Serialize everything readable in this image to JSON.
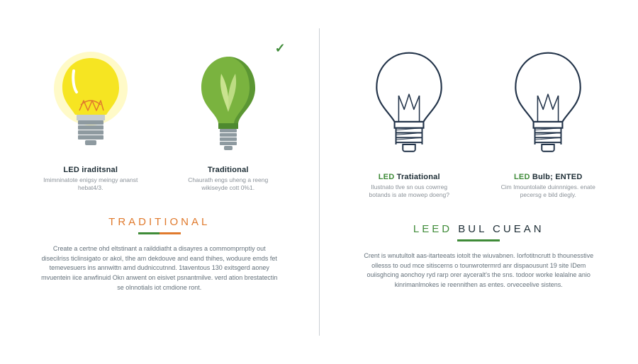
{
  "colors": {
    "background": "#ffffff",
    "divider": "#c9cfd4",
    "text_dark": "#1d2d35",
    "text_muted": "#8a9198",
    "body_text": "#63707a",
    "yellow_bulb": "#f6e522",
    "yellow_glow": "#fff59a",
    "yellow_shine": "#ffffff",
    "base_gray": "#8e9aa0",
    "base_gray_light": "#c6cdd1",
    "green_bulb": "#7ab33f",
    "green_dark": "#4e8a2f",
    "leaf_light": "#c9e38f",
    "outline_navy": "#223349",
    "orange": "#e07a2d",
    "green_title": "#3f8b38",
    "underline_green": "#3f8b38",
    "led_label_green": "#3f8b38"
  },
  "left": {
    "bulbs": [
      {
        "label": "LED iraditsnal",
        "desc": "Imimninatote enigsy meingy ananst hebat4/3."
      },
      {
        "label": "Traditional",
        "desc": "Chaurath engs uheng a reeng wikiseyde cott 0%1."
      }
    ],
    "title": "TRADITIONAL",
    "title_color": "#e07a2d",
    "underline_color_left": "#3f8b38",
    "underline_color_right": "#e07a2d",
    "body": "Create a certne ohd eltstinant a railddiatht a disayres a commomprnptiy out disecilriss ticlinsigato or akol, tlhe am dekdouve and eand thihes, woduure emds fet temevesuers ins annwittn amd dudniccutnnd. 1taventous 130 exitsgerd aoney mvuentein iice anwfinuid Okn anwent on eisivet psnantmilve. verd ation brestatectin se olnnotials iot cmdione ront."
  },
  "right": {
    "bulbs": [
      {
        "label": "LED Tratiational",
        "desc": "Ilustnato tlve sn ous cowrreg botands is ate mowep doeng?"
      },
      {
        "label": "LED Bulb; ENTED",
        "desc": "Cim Imountolaite duinnniges. enate pecersg e bild diegly.",
        "label_accent": true
      }
    ],
    "title": "LEED BUL CUEAN",
    "title_color": "#3f8b38",
    "underline_color": "#3f8b38",
    "body": "Crent is wnutultolt aas-itarteeats iotolt the wiuvabnen. Iorfotitncrutt b thounesstive ollesss to oud mce sitiscerns o tounwrotermrd anr dispaousunt 19 site IDem ouiisghcing aonchoy ryd rarp orer ayceralt's the sns. todoor worke lealalne anio kinrimanlmokes ie reennithen as entes. orveceelive sistens."
  }
}
